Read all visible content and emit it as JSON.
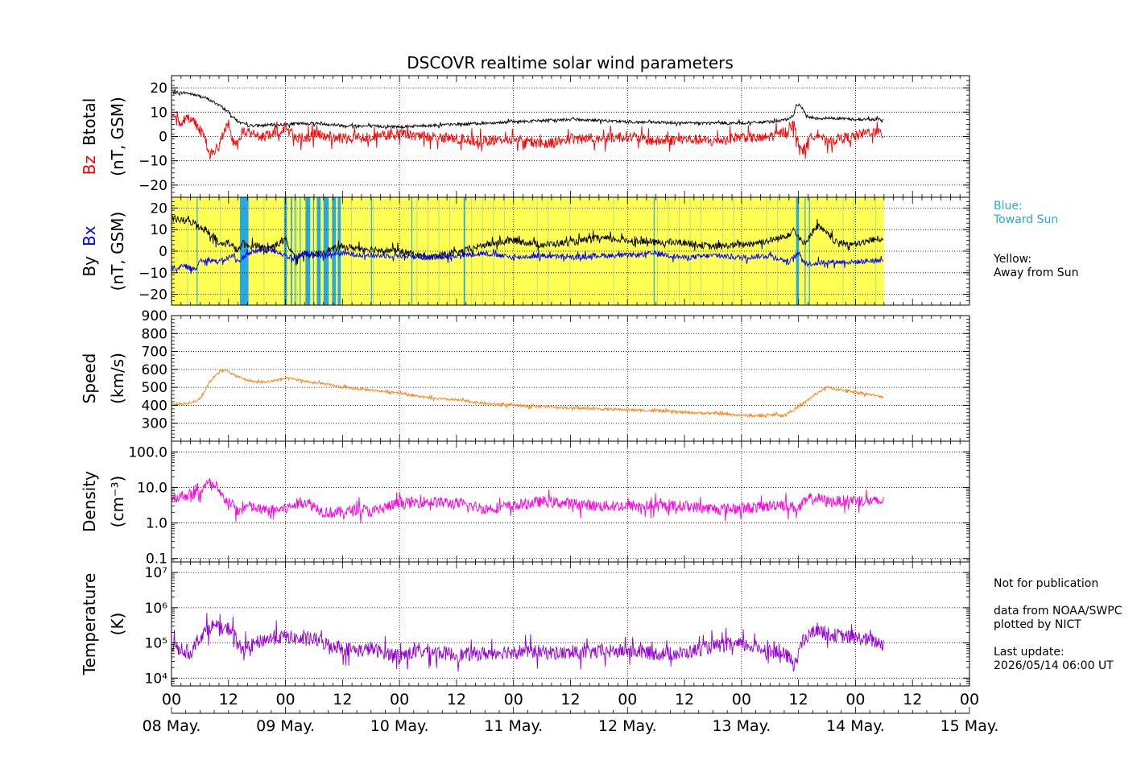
{
  "chart_data": {
    "title": "DSCOVR realtime solar wind parameters",
    "type": "line",
    "x_axis": {
      "hour_ticks": [
        "00",
        "12",
        "00",
        "12",
        "00",
        "12",
        "00",
        "12",
        "00",
        "12",
        "00",
        "12",
        "00",
        "12",
        "00"
      ],
      "day_labels": [
        "08 May.",
        "09 May.",
        "10 May.",
        "11 May.",
        "12 May.",
        "13 May.",
        "14 May.",
        "15 May."
      ],
      "range_hours": [
        0,
        168
      ],
      "data_end_hour": 150
    },
    "panels": [
      {
        "id": "mag-bz",
        "ylabel": [
          "Bz",
          "Btotal"
        ],
        "ylabel_colors": [
          "#ff0000",
          "#000000"
        ],
        "unit": "(nT, GSM)",
        "ylim": [
          -25,
          25
        ],
        "ticks": [
          "20",
          "10",
          "0",
          "−10",
          "−20"
        ],
        "tick_values": [
          20,
          10,
          0,
          -10,
          -20
        ],
        "series": [
          {
            "name": "Btotal",
            "color": "#000000",
            "x": [
              0,
              3,
              5,
              7,
              9,
              10,
              12,
              14,
              16,
              18,
              24,
              30,
              36,
              48,
              60,
              72,
              84,
              84.5,
              85,
              96,
              108,
              120,
              126,
              130,
              131,
              131.5,
              132,
              133,
              134,
              136,
              140,
              144,
              150
            ],
            "y": [
              18,
              18,
              17,
              16,
              14,
              13,
              10,
              6,
              4.5,
              4.5,
              5,
              5.5,
              4.5,
              4,
              5,
              6,
              7,
              8,
              7,
              6,
              5.5,
              5.5,
              6,
              7,
              9,
              13,
              13,
              11,
              8,
              7.5,
              7.5,
              7,
              7
            ],
            "noise": 0.6
          },
          {
            "name": "Bz",
            "color": "#ff0000",
            "x": [
              0,
              2,
              4,
              6,
              7,
              8,
              9,
              10,
              11,
              12,
              13,
              14,
              15,
              16,
              18,
              20,
              24,
              28,
              30,
              36,
              42,
              48,
              54,
              60,
              66,
              72,
              78,
              84,
              90,
              96,
              102,
              108,
              114,
              120,
              124,
              128,
              130,
              131,
              132,
              133,
              134,
              136,
              138,
              140,
              144,
              147,
              150
            ],
            "y": [
              7,
              6,
              8,
              3,
              0,
              -8,
              -6,
              -4,
              2,
              5,
              -2,
              -4,
              3,
              2,
              0,
              0,
              3,
              -2,
              1,
              -1,
              0,
              1,
              0,
              -1,
              -2,
              -1,
              -3,
              -1,
              -1,
              0,
              -2,
              -1,
              -2,
              0,
              -1,
              1,
              3,
              5,
              -3,
              -6,
              -2,
              2,
              -3,
              -1,
              0,
              2,
              1
            ],
            "noise": 2.2
          }
        ]
      },
      {
        "id": "mag-bx",
        "ylabel": [
          "By",
          "Bx"
        ],
        "ylabel_colors": [
          "#000000",
          "#0000ff"
        ],
        "unit": "(nT, GSM)",
        "ylim": [
          -25,
          25
        ],
        "ticks": [
          "20",
          "10",
          "0",
          "−10",
          "−20"
        ],
        "tick_values": [
          20,
          10,
          0,
          -10,
          -20
        ],
        "sector_background": {
          "away_color": "#ffff54",
          "toward_color": "#29a9dd",
          "toward_spans_hours": [
            [
              5.3,
              5.5
            ],
            [
              14.4,
              16.2
            ],
            [
              23.7,
              24.3
            ],
            [
              25.1,
              25.4
            ],
            [
              25.9,
              26.1
            ],
            [
              27,
              27.2
            ],
            [
              28.2,
              29.2
            ],
            [
              29.8,
              30
            ],
            [
              30.6,
              31.4
            ],
            [
              32,
              33.1
            ],
            [
              33.8,
              34.6
            ],
            [
              35,
              35.6
            ],
            [
              42,
              42.2
            ],
            [
              50.5,
              50.7
            ],
            [
              61.5,
              61.8
            ],
            [
              101.5,
              101.7
            ],
            [
              131.5,
              132.1
            ],
            [
              133.3,
              133.5
            ],
            [
              134.2,
              134.4
            ]
          ]
        },
        "series": [
          {
            "name": "By",
            "color": "#000000",
            "x": [
              0,
              3,
              5,
              7,
              9,
              10,
              12,
              13,
              14,
              15,
              16,
              18,
              20,
              22,
              24,
              26,
              28,
              30,
              32,
              36,
              42,
              48,
              54,
              60,
              66,
              72,
              78,
              84,
              90,
              96,
              102,
              108,
              114,
              120,
              126,
              128,
              130,
              131,
              132,
              133,
              134,
              136,
              138,
              140,
              144,
              147,
              150
            ],
            "y": [
              15,
              14,
              13,
              10,
              7,
              3,
              4,
              2,
              0,
              4,
              2,
              3,
              1,
              3,
              5,
              -3,
              -1,
              -2,
              0,
              2,
              1,
              0,
              -3,
              -1,
              3,
              5,
              3,
              4,
              6,
              5,
              4,
              4,
              2,
              3,
              5,
              6,
              8,
              10,
              7,
              3,
              6,
              12,
              8,
              4,
              3,
              5,
              6
            ],
            "noise": 1.6
          },
          {
            "name": "Bx",
            "color": "#0000ff",
            "x": [
              0,
              3,
              5,
              6,
              8,
              10,
              12,
              13,
              14,
              15,
              16,
              18,
              20,
              22,
              24,
              26,
              28,
              30,
              36,
              42,
              48,
              54,
              60,
              66,
              72,
              78,
              84,
              90,
              96,
              102,
              108,
              114,
              120,
              126,
              130,
              131,
              132,
              133,
              134,
              138,
              144,
              150
            ],
            "y": [
              -8,
              -7,
              -9,
              -4,
              -4,
              -5,
              -3,
              -2,
              -5,
              -3,
              -1,
              0,
              1,
              0,
              -2,
              -4,
              -1,
              -2,
              -1,
              -2,
              -2,
              -3,
              -2,
              -1,
              -3,
              -2,
              -3,
              -2,
              -2,
              -1,
              -3,
              -2,
              -3,
              -2,
              -5,
              -3,
              -1,
              -4,
              -6,
              -5,
              -5,
              -4
            ],
            "noise": 1.2
          }
        ]
      },
      {
        "id": "speed",
        "ylabel": [
          "Speed"
        ],
        "ylabel_colors": [
          "#000000"
        ],
        "unit": "(km/s)",
        "ylim": [
          200,
          900
        ],
        "ticks": [
          "900",
          "800",
          "700",
          "600",
          "500",
          "400",
          "300"
        ],
        "tick_values": [
          900,
          800,
          700,
          600,
          500,
          400,
          300
        ],
        "series": [
          {
            "name": "Speed",
            "color": "#ff7f0e",
            "x": [
              0,
              3,
              5,
              6,
              7,
              8,
              9,
              10,
              11,
              12,
              13,
              14,
              15,
              16,
              18,
              20,
              22,
              24,
              26,
              28,
              30,
              32,
              34,
              36,
              40,
              42,
              44,
              48,
              54,
              60,
              66,
              72,
              78,
              84,
              90,
              96,
              102,
              108,
              114,
              120,
              124,
              126,
              128,
              128.5,
              129,
              130,
              132,
              134,
              136,
              138,
              140,
              144,
              148,
              150
            ],
            "y": [
              405,
              410,
              420,
              440,
              480,
              530,
              560,
              590,
              595,
              590,
              570,
              560,
              550,
              540,
              530,
              530,
              540,
              550,
              545,
              535,
              525,
              520,
              510,
              500,
              490,
              485,
              480,
              470,
              440,
              430,
              410,
              400,
              395,
              385,
              380,
              375,
              370,
              360,
              355,
              345,
              340,
              345,
              350,
              340,
              345,
              360,
              390,
              430,
              470,
              500,
              490,
              475,
              455,
              445
            ],
            "noise": 7
          }
        ]
      },
      {
        "id": "density",
        "ylabel": [
          "Density"
        ],
        "ylabel_colors": [
          "#000000"
        ],
        "unit": "(cm⁻³)",
        "scale": "log",
        "ylim": [
          0.08,
          200
        ],
        "ticks": [
          "100.0",
          "10.0",
          "1.0",
          "0.1"
        ],
        "tick_values": [
          100,
          10,
          1,
          0.1
        ],
        "series": [
          {
            "name": "Density",
            "color": "#ff00dd",
            "x": [
              0,
              3,
              6,
              7,
              8,
              9,
              10,
              11,
              12,
              13,
              14,
              16,
              18,
              20,
              24,
              28,
              30,
              32,
              34,
              36,
              40,
              42,
              44,
              48,
              54,
              60,
              66,
              72,
              78,
              84,
              90,
              96,
              102,
              108,
              114,
              120,
              126,
              128,
              130,
              132,
              134,
              136,
              138,
              140,
              144,
              148,
              150
            ],
            "y": [
              5,
              6,
              7,
              11,
              13,
              10,
              7,
              5,
              4,
              3,
              2,
              3,
              2.5,
              2.2,
              2.5,
              4,
              3,
              2,
              2,
              2,
              2.5,
              2,
              2.5,
              3.5,
              4,
              3.5,
              2.5,
              3,
              4,
              3.5,
              3,
              3,
              3,
              3,
              2.5,
              2.5,
              3,
              3.5,
              3,
              2.5,
              4.5,
              5,
              4,
              4,
              4.5,
              4,
              4
            ],
            "noise": 0.16
          }
        ]
      },
      {
        "id": "temperature",
        "ylabel": [
          "Temperature"
        ],
        "ylabel_colors": [
          "#000000"
        ],
        "unit": "(K)",
        "scale": "log",
        "ylim": [
          6000,
          20000000
        ],
        "ticks": [
          "10⁷",
          "10⁶",
          "10⁵",
          "10⁴"
        ],
        "tick_values": [
          10000000,
          1000000,
          100000,
          10000
        ],
        "series": [
          {
            "name": "Temperature",
            "color": "#9400d3",
            "x": [
              0,
              3,
              4,
              5,
              6,
              7,
              8,
              9,
              10,
              11,
              12,
              13,
              14,
              16,
              18,
              20,
              24,
              28,
              30,
              32,
              36,
              40,
              42,
              44,
              48,
              54,
              60,
              66,
              72,
              78,
              84,
              90,
              96,
              102,
              108,
              114,
              120,
              126,
              128,
              130,
              130.5,
              131,
              132,
              134,
              136,
              138,
              140,
              144,
              148,
              150
            ],
            "y": [
              80000,
              60000,
              50000,
              90000,
              150000,
              200000,
              280000,
              320000,
              250000,
              230000,
              260000,
              200000,
              80000,
              70000,
              100000,
              130000,
              150000,
              120000,
              130000,
              100000,
              70000,
              60000,
              70000,
              55000,
              45000,
              60000,
              45000,
              50000,
              60000,
              55000,
              50000,
              55000,
              60000,
              50000,
              50000,
              80000,
              90000,
              60000,
              50000,
              40000,
              30000,
              20000,
              60000,
              150000,
              250000,
              180000,
              160000,
              140000,
              110000,
              90000
            ],
            "noise": 0.2
          }
        ]
      }
    ],
    "sector_legend": {
      "toward": "Blue:\nToward Sun",
      "away": "Yellow:\nAway from Sun"
    },
    "notes": "Not for publication\n\ndata from NOAA/SWPC\nplotted by NICT\n\nLast update:\n2026/05/14 06:00 UT"
  }
}
